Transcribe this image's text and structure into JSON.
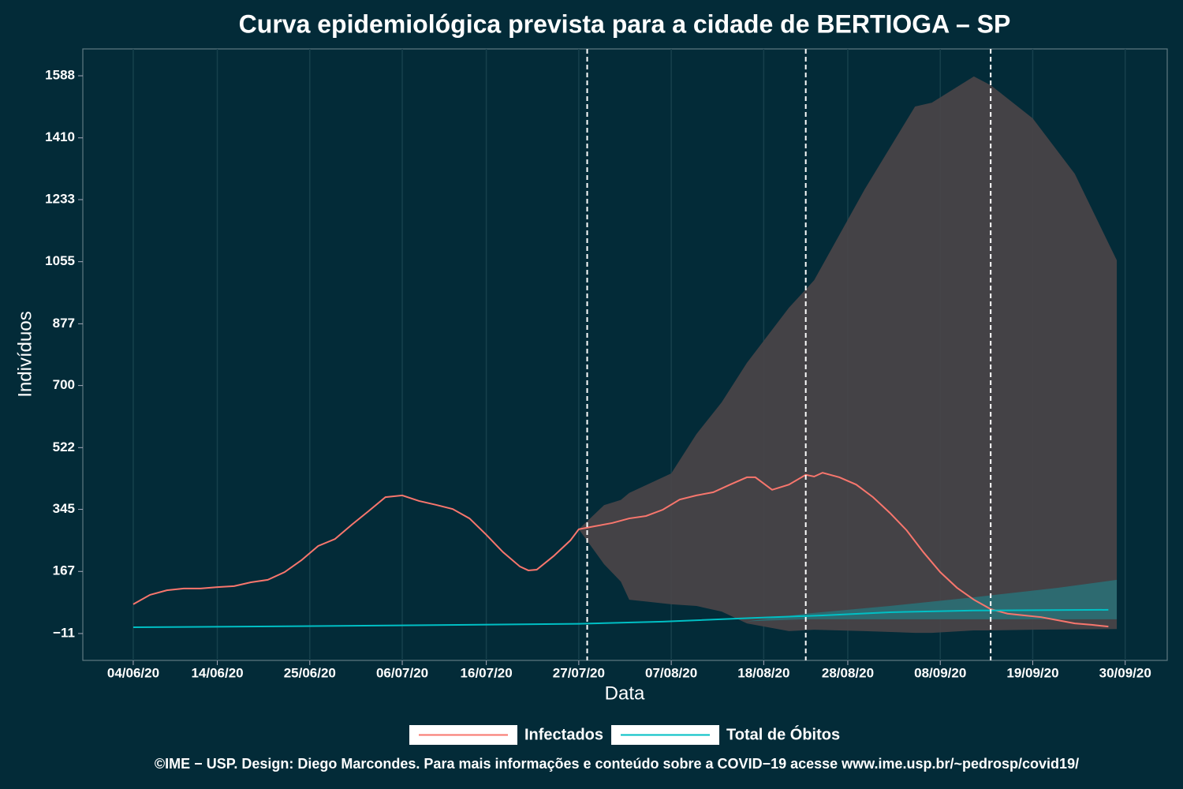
{
  "chart_data": {
    "type": "line",
    "title": "Curva epidemiológica prevista para a cidade de BERTIOGA – SP",
    "x_label": "Data",
    "y_label": "Indivíduos",
    "footer": "©IME − USP. Design: Diego Marcondes. Para mais informações e conteúdo sobre a COVID−19 acesse www.ime.usp.br/~pedrosp/covid19/",
    "xlim": [
      "29/05/20",
      "05/10/20"
    ],
    "xticks": [
      "04/06/20",
      "14/06/20",
      "25/06/20",
      "06/07/20",
      "16/07/20",
      "27/07/20",
      "07/08/20",
      "18/08/20",
      "28/08/20",
      "08/09/20",
      "19/09/20",
      "30/09/20"
    ],
    "ylim": [
      -88,
      1665
    ],
    "yticks": [
      {
        "value": -11,
        "label": "−11"
      },
      167,
      345,
      522,
      700,
      877,
      1055,
      1233,
      1410,
      1588
    ],
    "grid": true,
    "vlines": [
      "28/07/20",
      "23/08/20",
      "14/09/20"
    ],
    "legend": "bottom",
    "series": [
      {
        "name": "Infectados",
        "color": "#f8766d",
        "x": [
          "04/06/20",
          "06/06/20",
          "08/06/20",
          "10/06/20",
          "12/06/20",
          "14/06/20",
          "16/06/20",
          "18/06/20",
          "20/06/20",
          "22/06/20",
          "24/06/20",
          "26/06/20",
          "28/06/20",
          "30/06/20",
          "02/07/20",
          "04/07/20",
          "06/07/20",
          "08/07/20",
          "10/07/20",
          "12/07/20",
          "14/07/20",
          "16/07/20",
          "18/07/20",
          "20/07/20",
          "21/07/20",
          "22/07/20",
          "24/07/20",
          "26/07/20",
          "27/07/20",
          "29/07/20",
          "31/07/20",
          "02/08/20",
          "04/08/20",
          "06/08/20",
          "08/08/20",
          "10/08/20",
          "12/08/20",
          "14/08/20",
          "16/08/20",
          "17/08/20",
          "19/08/20",
          "21/08/20",
          "23/08/20",
          "24/08/20",
          "25/08/20",
          "27/08/20",
          "29/08/20",
          "31/08/20",
          "02/09/20",
          "04/09/20",
          "06/09/20",
          "08/09/20",
          "10/09/20",
          "12/09/20",
          "14/09/20",
          "16/09/20",
          "18/09/20",
          "20/09/20",
          "22/09/20",
          "24/09/20",
          "26/09/20",
          "28/09/20"
        ],
        "values": [
          73,
          100,
          113,
          118,
          118,
          122,
          125,
          136,
          143,
          165,
          199,
          240,
          260,
          301,
          340,
          380,
          385,
          369,
          358,
          346,
          319,
          272,
          222,
          181,
          170,
          172,
          211,
          256,
          288,
          297,
          306,
          319,
          326,
          344,
          373,
          385,
          394,
          416,
          437,
          437,
          401,
          416,
          444,
          439,
          450,
          437,
          416,
          380,
          335,
          285,
          222,
          165,
          120,
          86,
          59,
          46,
          41,
          36,
          27,
          18,
          14,
          9
        ]
      },
      {
        "name": "Total de Óbitos",
        "color": "#00bfc4",
        "x": [
          "04/06/20",
          "24/06/20",
          "14/07/20",
          "27/07/20",
          "06/08/20",
          "16/08/20",
          "25/08/20",
          "02/09/20",
          "12/09/20",
          "28/09/20"
        ],
        "values": [
          7,
          10,
          14,
          17,
          23,
          33,
          41,
          50,
          55,
          57
        ]
      }
    ],
    "bands": [
      {
        "color": "#4a4448",
        "x": [
          "27/07/20",
          "30/07/20",
          "01/08/20",
          "02/08/20",
          "07/08/20",
          "10/08/20",
          "13/08/20",
          "16/08/20",
          "21/08/20",
          "24/08/20",
          "30/08/20",
          "05/09/20",
          "07/09/20",
          "12/09/20",
          "14/09/20",
          "19/09/20",
          "24/09/20",
          "29/09/20"
        ],
        "lower": [
          288,
          188,
          138,
          86,
          73,
          68,
          52,
          18,
          -4,
          0,
          -4,
          -9,
          -9,
          -2,
          -2,
          0,
          1,
          2
        ],
        "upper": [
          288,
          357,
          372,
          392,
          448,
          561,
          652,
          765,
          923,
          1002,
          1262,
          1500,
          1511,
          1586,
          1561,
          1466,
          1307,
          1059
        ]
      },
      {
        "color": "#2b6e74",
        "x": [
          "16/08/20",
          "23/08/20",
          "02/09/20",
          "12/09/20",
          "22/09/20",
          "29/09/20"
        ],
        "lower": [
          24,
          30,
          30,
          30,
          30,
          30
        ],
        "upper": [
          24,
          46,
          68,
          93,
          120,
          143
        ]
      }
    ]
  }
}
